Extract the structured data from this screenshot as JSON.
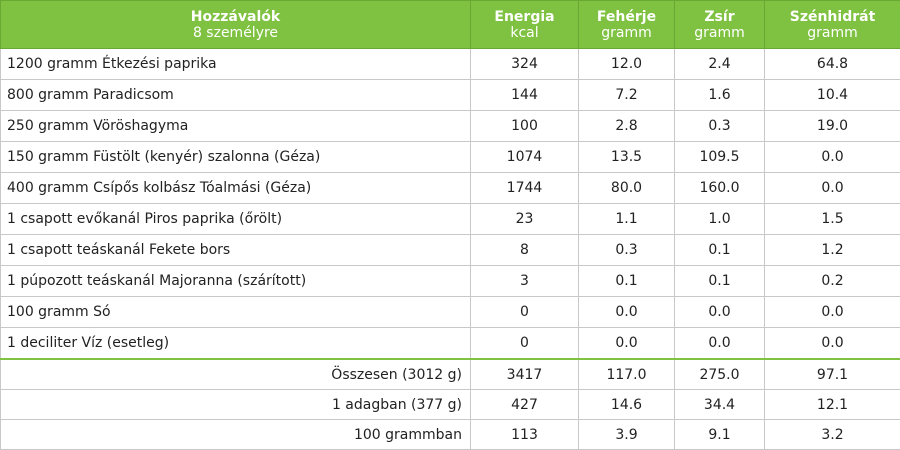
{
  "header": {
    "ingredients_label": "Hozzávalók",
    "servings_label": "8 személyre",
    "columns": [
      {
        "label": "Energia",
        "unit": "kcal"
      },
      {
        "label": "Fehérje",
        "unit": "gramm"
      },
      {
        "label": "Zsír",
        "unit": "gramm"
      },
      {
        "label": "Szénhidrát",
        "unit": "gramm"
      }
    ]
  },
  "ingredients": [
    {
      "name": "1200 gramm Étkezési paprika",
      "energy": "324",
      "protein": "12.0",
      "fat": "2.4",
      "carbs": "64.8"
    },
    {
      "name": "800 gramm Paradicsom",
      "energy": "144",
      "protein": "7.2",
      "fat": "1.6",
      "carbs": "10.4"
    },
    {
      "name": "250 gramm Vöröshagyma",
      "energy": "100",
      "protein": "2.8",
      "fat": "0.3",
      "carbs": "19.0"
    },
    {
      "name": "150 gramm Füstölt (kenyér) szalonna (Géza)",
      "energy": "1074",
      "protein": "13.5",
      "fat": "109.5",
      "carbs": "0.0"
    },
    {
      "name": "400 gramm Csípős kolbász Tóalmási (Géza)",
      "energy": "1744",
      "protein": "80.0",
      "fat": "160.0",
      "carbs": "0.0"
    },
    {
      "name": "1 csapott evőkanál Piros paprika (őrölt)",
      "energy": "23",
      "protein": "1.1",
      "fat": "1.0",
      "carbs": "1.5"
    },
    {
      "name": "1 csapott teáskanál Fekete bors",
      "energy": "8",
      "protein": "0.3",
      "fat": "0.1",
      "carbs": "1.2"
    },
    {
      "name": "1 púpozott teáskanál Majoranna (szárított)",
      "energy": "3",
      "protein": "0.1",
      "fat": "0.1",
      "carbs": "0.2"
    },
    {
      "name": "100 gramm Só",
      "energy": "0",
      "protein": "0.0",
      "fat": "0.0",
      "carbs": "0.0"
    },
    {
      "name": "1 deciliter Víz (esetleg)",
      "energy": "0",
      "protein": "0.0",
      "fat": "0.0",
      "carbs": "0.0"
    }
  ],
  "totals": [
    {
      "label": "Összesen (3012 g)",
      "energy": "3417",
      "protein": "117.0",
      "fat": "275.0",
      "carbs": "97.1"
    },
    {
      "label": "1 adagban (377 g)",
      "energy": "427",
      "protein": "14.6",
      "fat": "34.4",
      "carbs": "12.1"
    },
    {
      "label": "100 grammban",
      "energy": "113",
      "protein": "3.9",
      "fat": "9.1",
      "carbs": "3.2"
    }
  ],
  "colors": {
    "header_bg": "#7fc241",
    "header_text": "#ffffff",
    "border": "#c8c8c8"
  }
}
